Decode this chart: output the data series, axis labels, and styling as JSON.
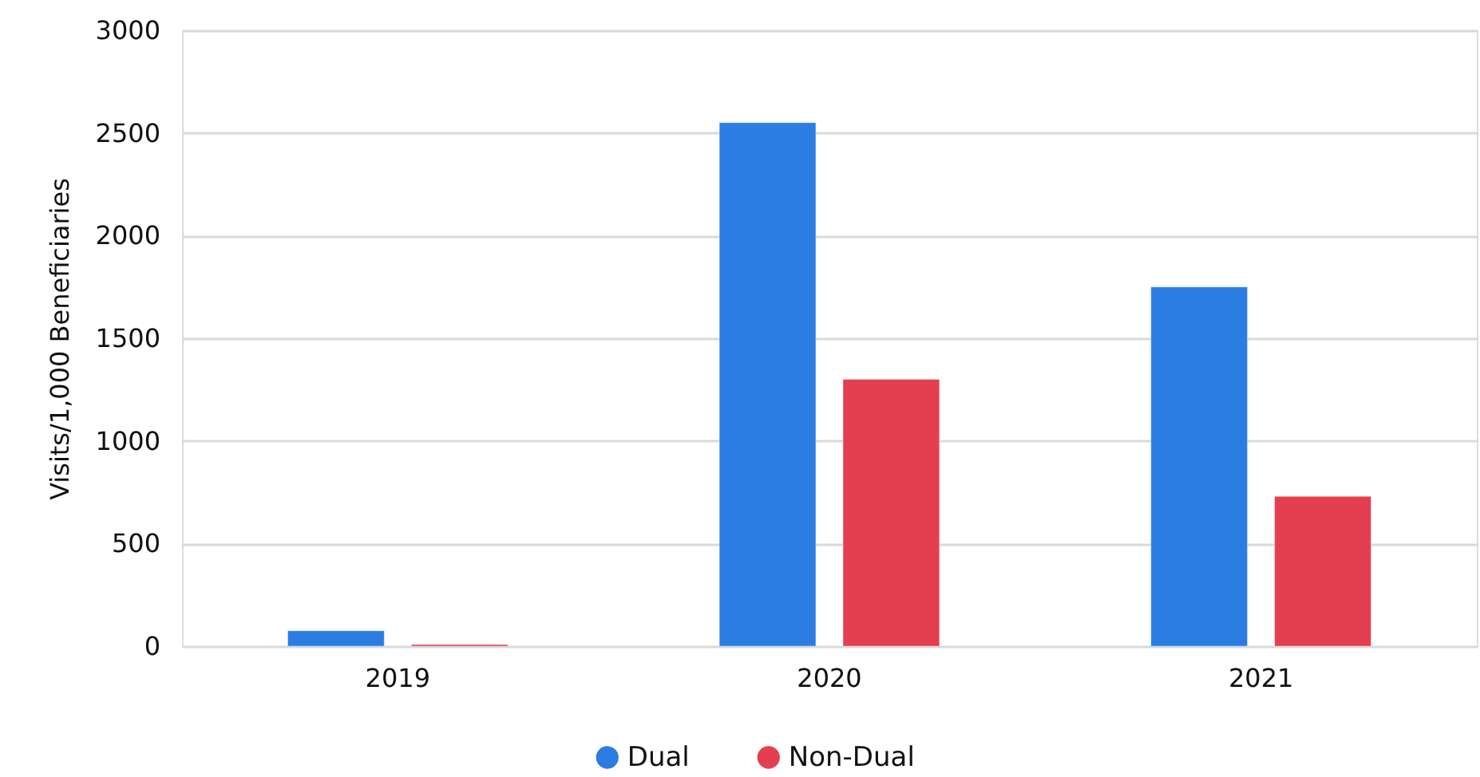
{
  "chart_data": {
    "type": "bar",
    "ylabel": "Visits/1,000 Beneficiaries",
    "categories": [
      "2019",
      "2020",
      "2021"
    ],
    "series": [
      {
        "name": "Dual",
        "color": "#2b7de1",
        "values": [
          75,
          2550,
          1750
        ]
      },
      {
        "name": "Non-Dual",
        "color": "#e43f51",
        "values": [
          8,
          1300,
          730
        ]
      }
    ],
    "ylim": [
      0,
      3000
    ],
    "yticks": [
      0,
      500,
      1000,
      1500,
      2000,
      2500,
      3000
    ],
    "grid": "y",
    "legend": "bottom"
  }
}
